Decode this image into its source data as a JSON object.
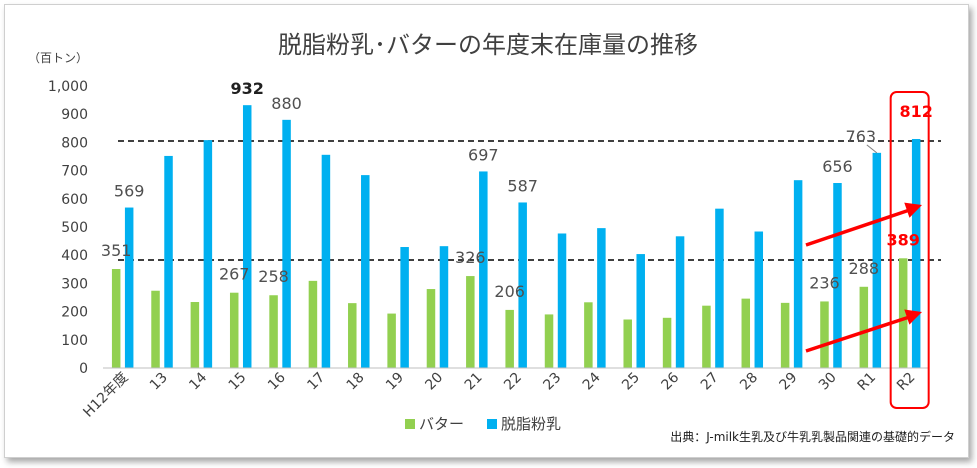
{
  "chart_data": {
    "type": "bar",
    "title": "脱脂粉乳･バターの年度末在庫量の推移",
    "unit_label": "（百トン）",
    "categories": [
      "H12年度",
      "13",
      "14",
      "15",
      "16",
      "17",
      "18",
      "19",
      "20",
      "21",
      "22",
      "23",
      "24",
      "25",
      "26",
      "27",
      "28",
      "29",
      "30",
      "R1",
      "R2"
    ],
    "series": [
      {
        "name": "バター",
        "color": "#92d050",
        "values": [
          351,
          274,
          234,
          267,
          258,
          309,
          230,
          193,
          280,
          326,
          206,
          190,
          233,
          172,
          178,
          221,
          246,
          231,
          236,
          288,
          389
        ]
      },
      {
        "name": "脱脂粉乳",
        "color": "#00b0f0",
        "values": [
          569,
          752,
          808,
          932,
          880,
          756,
          684,
          429,
          432,
          697,
          587,
          477,
          496,
          404,
          467,
          565,
          484,
          666,
          656,
          763,
          812
        ]
      }
    ],
    "ylim": [
      0,
      1000
    ],
    "yticks": [
      "0",
      "100",
      "200",
      "300",
      "400",
      "500",
      "600",
      "700",
      "800",
      "900",
      "1,000"
    ],
    "data_labels": {
      "butter": [
        {
          "index": 0,
          "text": "351"
        },
        {
          "index": 3,
          "text": "267"
        },
        {
          "index": 4,
          "text": "258"
        },
        {
          "index": 9,
          "text": "326"
        },
        {
          "index": 10,
          "text": "206"
        },
        {
          "index": 18,
          "text": "236"
        },
        {
          "index": 19,
          "text": "288"
        },
        {
          "index": 20,
          "text": "389"
        }
      ],
      "skim": [
        {
          "index": 0,
          "text": "569"
        },
        {
          "index": 3,
          "text": "932"
        },
        {
          "index": 4,
          "text": "880"
        },
        {
          "index": 9,
          "text": "697"
        },
        {
          "index": 10,
          "text": "587"
        },
        {
          "index": 18,
          "text": "656"
        },
        {
          "index": 19,
          "text": "763"
        },
        {
          "index": 20,
          "text": "812"
        }
      ]
    },
    "reference_lines": [
      805,
      383
    ],
    "highlight_category": "R2",
    "legend_position": "bottom-center",
    "grid": false
  },
  "source_note": "出典：J-milk生乳及び牛乳乳製品関連の基礎的データ",
  "colors": {
    "highlight": "#ff0000",
    "axis": "#bfbfbf",
    "text": "#404040"
  }
}
